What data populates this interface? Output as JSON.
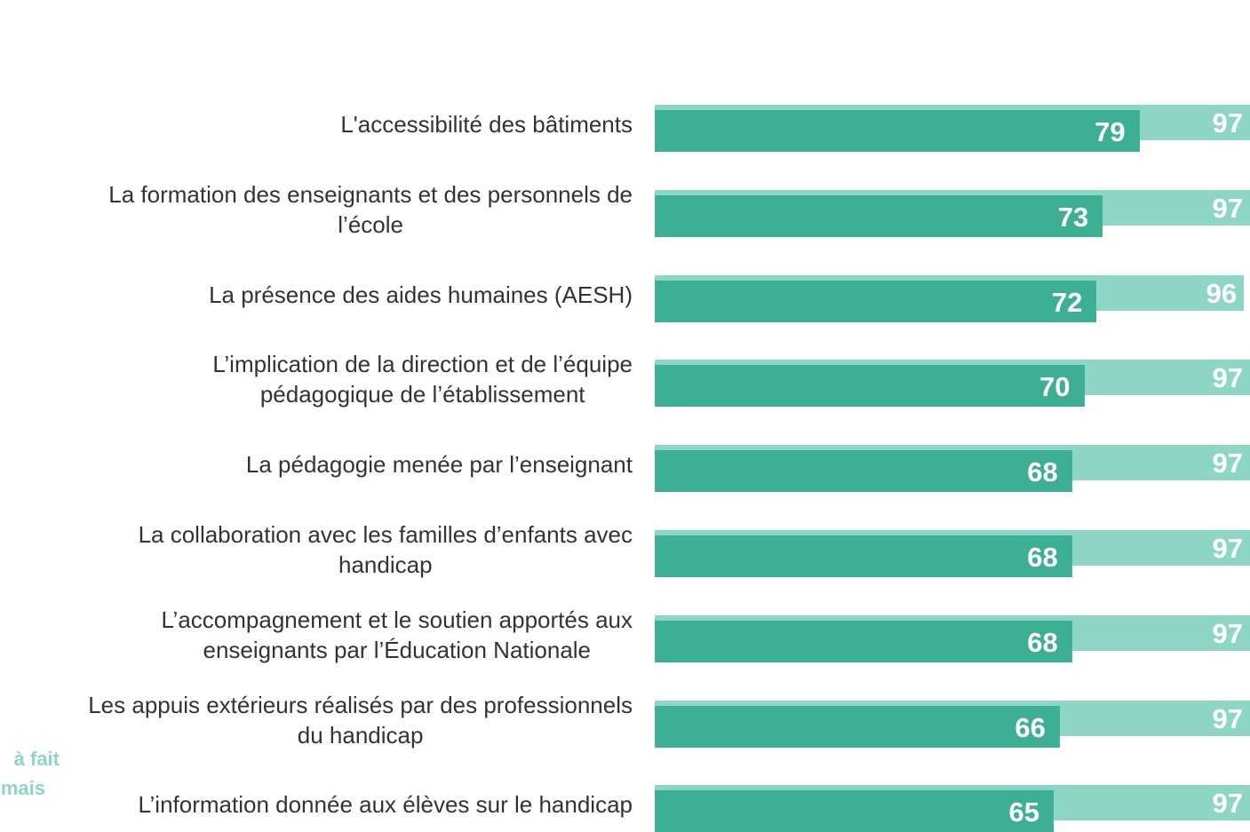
{
  "chart_data": {
    "type": "overlapping-bar",
    "categories": [
      "L'accessibilité des bâtiments",
      "La formation des enseignants et des personnels de\nl’école",
      "La présence des aides humaines (AESH)",
      "L’implication de la direction et de l’équipe\npédagogique de l’établissement",
      "La pédagogie menée par l’enseignant",
      "La collaboration avec les familles d’enfants avec\nhandicap",
      "L’accompagnement et le soutien apportés aux\nenseignants par l’Éducation Nationale",
      "Les appuis extérieurs réalisés par des professionnels\ndu handicap",
      "L’information donnée aux élèves sur le handicap"
    ],
    "series": [
      {
        "color": "#8dd6c6",
        "values": [
          97,
          97,
          96,
          97,
          97,
          97,
          97,
          97,
          97
        ]
      },
      {
        "color": "#3daf95",
        "values": [
          79,
          73,
          72,
          70,
          68,
          68,
          68,
          66,
          65
        ]
      }
    ],
    "xlim": [
      0,
      97
    ],
    "annotations": [
      "à fait",
      "mais"
    ]
  }
}
